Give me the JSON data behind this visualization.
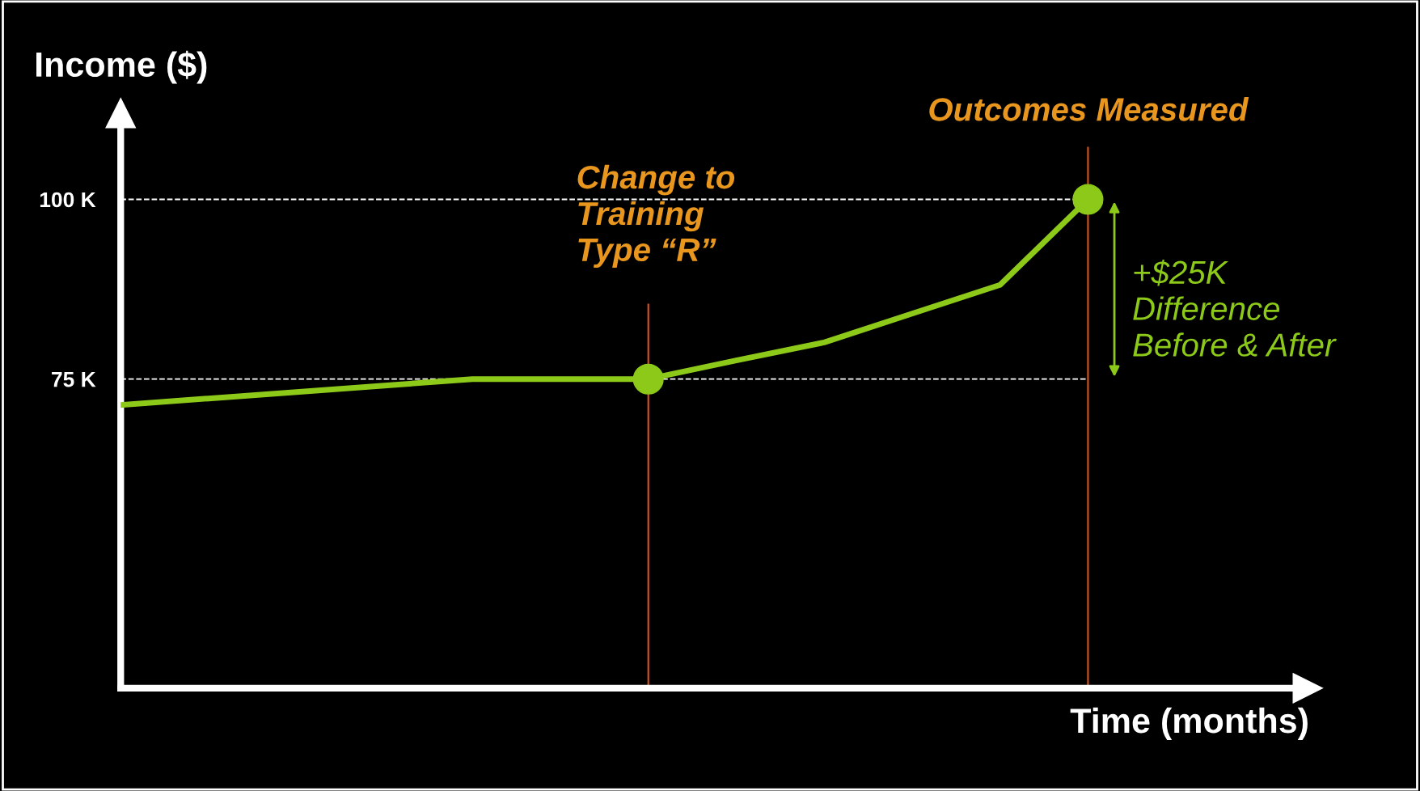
{
  "chart_data": {
    "type": "line",
    "xlabel": "Time (months)",
    "ylabel": "Income ($)",
    "categories": [
      null,
      null,
      null,
      null,
      null,
      null,
      null,
      null,
      null,
      null,
      null,
      null
    ],
    "series": [
      {
        "color": "#8cc919",
        "values": [
          71.4,
          72.3,
          73.2,
          74.1,
          75,
          75,
          75,
          77.6,
          80.1,
          84.1,
          88.1,
          100
        ]
      },
      {
        "type": "scatter",
        "color": "#8cc919",
        "marker": "circle",
        "values": [
          null,
          null,
          null,
          null,
          null,
          null,
          75,
          null,
          null,
          null,
          null,
          100
        ]
      }
    ],
    "ylim": [
      32,
      112
    ],
    "yticks": [
      {
        "value": 75,
        "label": "75 K"
      },
      {
        "value": 100,
        "label": "100 K"
      }
    ],
    "tick_labels": "y",
    "marker": "none",
    "ref_lines": [
      {
        "axis": "y",
        "value": 100,
        "color": "#ffffff",
        "line_style": "dashed"
      },
      {
        "axis": "y",
        "value": 75,
        "color": "#ffffff",
        "line_style": "dashed"
      }
    ],
    "annotations": [
      "Change to\nTraining\nType “R”",
      "Outcomes Measured",
      "+$25K\nDifference\nBefore & After"
    ]
  }
}
